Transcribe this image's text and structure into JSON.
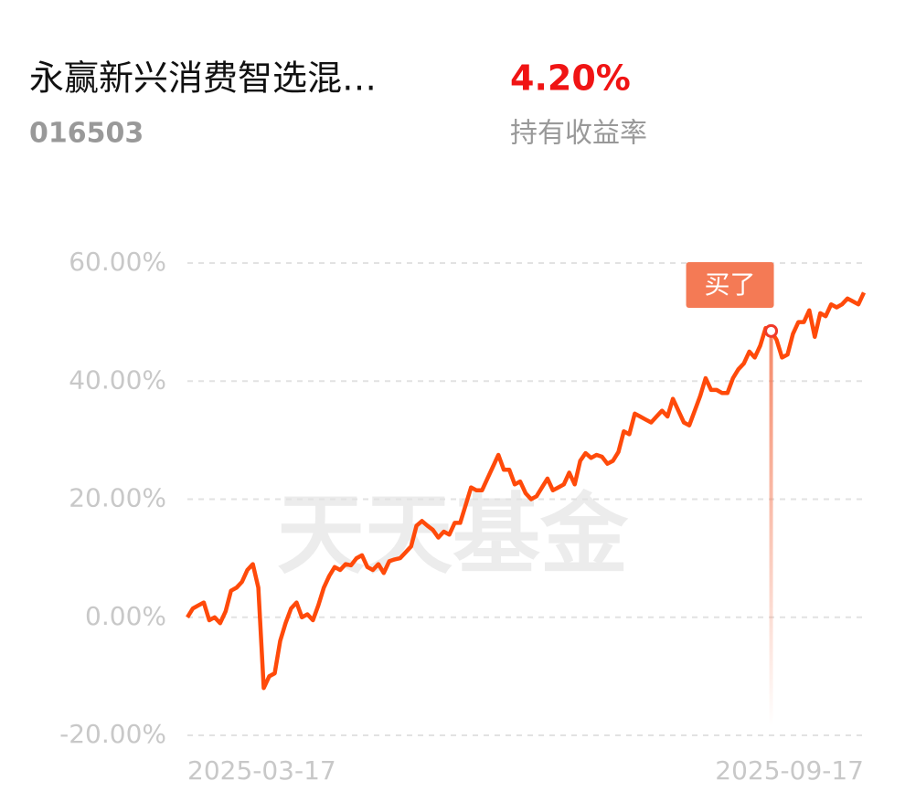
{
  "header": {
    "name": "永赢新兴消费智选混…",
    "code": "016503",
    "return": "4.20%",
    "return_caption": "持有收益率"
  },
  "chart_data": {
    "type": "line",
    "watermark": "天天基金",
    "categories": [
      "2025-03-17",
      null,
      null,
      null,
      null,
      null,
      null,
      null,
      null,
      null,
      null,
      null,
      null,
      null,
      null,
      null,
      null,
      null,
      null,
      null,
      null,
      null,
      null,
      null,
      null,
      null,
      null,
      null,
      null,
      null,
      null,
      null,
      null,
      null,
      null,
      null,
      null,
      null,
      null,
      null,
      null,
      null,
      null,
      null,
      null,
      null,
      null,
      null,
      null,
      null,
      null,
      null,
      null,
      null,
      null,
      null,
      null,
      null,
      null,
      null,
      null,
      null,
      null,
      null,
      null,
      null,
      null,
      null,
      null,
      null,
      null,
      null,
      null,
      null,
      null,
      null,
      null,
      null,
      null,
      null,
      null,
      null,
      null,
      null,
      null,
      null,
      null,
      null,
      null,
      null,
      null,
      null,
      null,
      null,
      null,
      null,
      null,
      null,
      null,
      null,
      null,
      null,
      null,
      null,
      null,
      null,
      null,
      null,
      null,
      null,
      null,
      null,
      null,
      null,
      null,
      null,
      null,
      null,
      null,
      null,
      null,
      null,
      null,
      null,
      "2025-09-17"
    ],
    "series": [
      {
        "color": "#ff4a0a",
        "values": [
          0,
          1.5,
          2,
          2.5,
          -0.5,
          0,
          -1,
          1,
          4.5,
          5,
          6,
          8,
          9,
          5,
          -12,
          -10,
          -9.5,
          -4,
          -1,
          1.5,
          2.5,
          0,
          0.5,
          -0.5,
          2,
          5,
          7,
          8.5,
          8,
          9,
          8.8,
          10,
          10.5,
          8.5,
          8,
          9,
          7.5,
          9.5,
          9.8,
          10,
          11,
          12,
          15.5,
          16.3,
          15.5,
          14.8,
          13.5,
          14.5,
          14,
          16,
          16,
          19,
          22,
          21.5,
          21.5,
          23.5,
          25.5,
          27.5,
          25,
          25,
          22.5,
          23,
          21,
          20,
          20.5,
          22,
          23.5,
          21.5,
          22,
          22.5,
          24.5,
          22.5,
          26.5,
          27.8,
          27,
          27.5,
          27.2,
          26,
          26.5,
          28,
          31.5,
          31,
          34.5,
          34,
          33.5,
          33,
          34,
          35,
          34,
          37,
          35,
          33,
          32.5,
          35,
          37.5,
          40.5,
          38.5,
          38.5,
          38,
          38,
          40.5,
          42,
          43,
          45,
          44,
          46,
          49,
          48.5,
          47,
          44,
          44.5,
          48,
          50,
          50,
          52,
          47.5,
          51.5,
          51,
          53,
          52.5,
          53,
          54,
          53.5,
          53,
          55
        ]
      }
    ],
    "annotations": [
      {
        "text": "买了",
        "index": 107,
        "color": "#f47a55"
      }
    ],
    "ylim": [
      -20,
      60
    ],
    "yticks": [
      {
        "value": -20,
        "label": "-20.00%"
      },
      {
        "value": 0,
        "label": "0.00%"
      },
      {
        "value": 20,
        "label": "20.00%"
      },
      {
        "value": 40,
        "label": "40.00%"
      },
      {
        "value": 60,
        "label": "60.00%"
      }
    ],
    "grid": true
  }
}
